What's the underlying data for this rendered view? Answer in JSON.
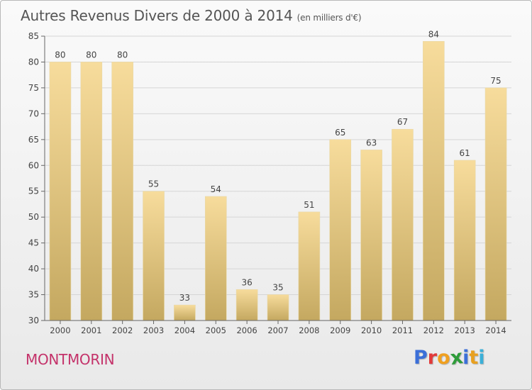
{
  "title": "Autres Revenus Divers de 2000 à 2014",
  "subtitle": "(en milliers d'€)",
  "place": "MONTMORIN",
  "logo": {
    "text": "Proxiti",
    "letters": [
      {
        "char": "P",
        "color": "#3b6fd8"
      },
      {
        "char": "r",
        "color": "#e23a3a"
      },
      {
        "char": "o",
        "color": "#f0a020"
      },
      {
        "char": "x",
        "color": "#2e9c3a"
      },
      {
        "char": "i",
        "color": "#3b6fd8"
      },
      {
        "char": "t",
        "color": "#e8a020"
      },
      {
        "char": "i",
        "color": "#3bb0d8"
      }
    ]
  },
  "colors": {
    "bar_top": "#f7dc9c",
    "bar_bottom": "#c4a860",
    "axis": "#666666",
    "grid": "#d6d6d6",
    "text": "#444444"
  },
  "chart_data": {
    "type": "bar",
    "categories": [
      "2000",
      "2001",
      "2002",
      "2003",
      "2004",
      "2005",
      "2006",
      "2007",
      "2008",
      "2009",
      "2010",
      "2011",
      "2012",
      "2013",
      "2014"
    ],
    "values": [
      80,
      80,
      80,
      55,
      33,
      54,
      36,
      35,
      51,
      65,
      63,
      67,
      84,
      61,
      75
    ],
    "ylim": [
      30,
      85
    ],
    "yticks": [
      30,
      35,
      40,
      45,
      50,
      55,
      60,
      65,
      70,
      75,
      80,
      85
    ],
    "grid": true,
    "data_labels": true
  }
}
